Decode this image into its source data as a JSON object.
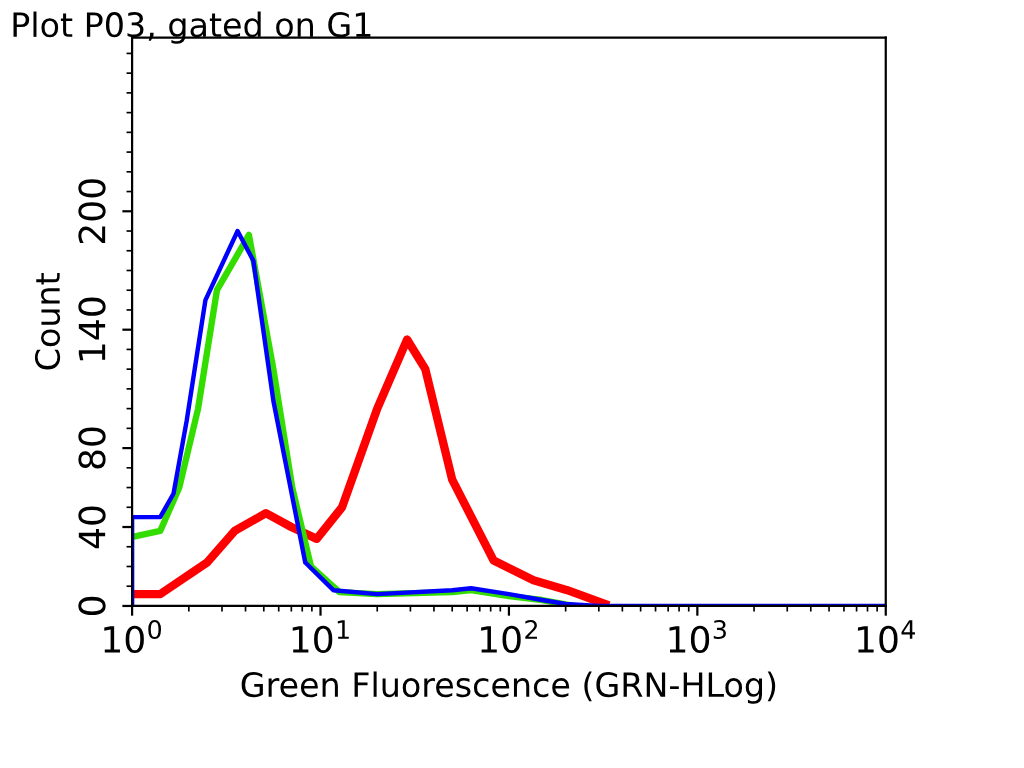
{
  "chart_data": {
    "type": "line",
    "title": "Plot P03, gated on G1",
    "xlabel": "Green Fluorescence (GRN-HLog)",
    "ylabel": "Count",
    "log": "x",
    "xlim": [
      1,
      10000
    ],
    "xticks": [
      {
        "value": 1,
        "label": "10$^{0}$"
      },
      {
        "value": 10,
        "label": "10$^{1}$"
      },
      {
        "value": 100,
        "label": "10$^{2}$"
      },
      {
        "value": 1000,
        "label": "10$^{3}$"
      },
      {
        "value": 10000,
        "label": "10$^{4}$"
      }
    ],
    "ylim": [
      0,
      288
    ],
    "yticks": [
      0,
      40,
      80,
      140,
      200
    ],
    "grid": false,
    "legend": false,
    "marker": "none",
    "line_style": "solid",
    "series": [
      {
        "color": "#ff0000",
        "x": [
          1,
          1.41,
          2.5,
          3.5,
          5.13,
          7,
          9.55,
          13,
          20,
          28.8,
          36,
          50,
          83,
          135,
          204,
          324
        ],
        "values": [
          6,
          6,
          22,
          38,
          47,
          40,
          34,
          50,
          100,
          135,
          120,
          64,
          23,
          13,
          8,
          1
        ]
      },
      {
        "color": "#33dd00",
        "x": [
          1,
          1.41,
          1.78,
          2.24,
          2.82,
          4.17,
          5.62,
          7.08,
          8.9,
          12.6,
          20,
          50,
          63,
          100,
          150,
          224
        ],
        "values": [
          35,
          38,
          60,
          100,
          160,
          188,
          120,
          60,
          20,
          7,
          6,
          7,
          8,
          5,
          3,
          0
        ]
      },
      {
        "color": "#0000ff",
        "x": [
          1,
          1,
          1.41,
          1.66,
          1.95,
          2.45,
          3.63,
          4.4,
          5.62,
          8.3,
          11.7,
          20,
          50,
          63,
          100,
          150,
          200,
          300,
          10000
        ],
        "values": [
          0,
          45,
          45,
          57,
          94,
          155,
          190,
          175,
          104,
          22,
          8,
          6,
          8,
          9,
          6,
          3,
          1,
          0,
          0
        ]
      }
    ]
  }
}
